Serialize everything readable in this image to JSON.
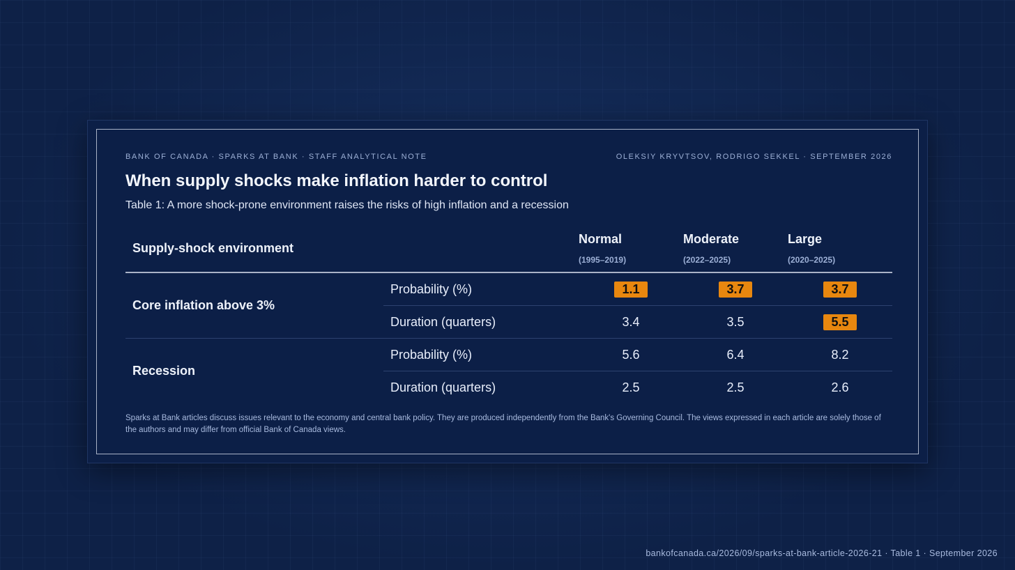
{
  "header": {
    "meta_left": "BANK OF CANADA · SPARKS AT BANK · STAFF ANALYTICAL NOTE",
    "meta_right": "OLEKSIY KRYVTSOV, RODRIGO SEKKEL · SEPTEMBER 2026",
    "title": "When supply shocks make inflation harder to control",
    "subtitle": "Table 1: A more shock-prone environment raises the risks of high inflation and a recession"
  },
  "chart_data": {
    "type": "table",
    "row_header": "Supply-shock environment",
    "columns": [
      {
        "name": "Normal",
        "period": "(1995–2019)"
      },
      {
        "name": "Moderate",
        "period": "(2022–2025)"
      },
      {
        "name": "Large",
        "period": "(2020–2025)"
      }
    ],
    "groups": [
      {
        "label": "Core inflation above 3%",
        "rows": [
          {
            "metric": "Probability (%)",
            "values": [
              "1.1",
              "3.7",
              "3.7"
            ],
            "highlighted": [
              true,
              true,
              true
            ]
          },
          {
            "metric": "Duration (quarters)",
            "values": [
              "3.4",
              "3.5",
              "5.5"
            ],
            "highlighted": [
              false,
              false,
              true
            ]
          }
        ]
      },
      {
        "label": "Recession",
        "rows": [
          {
            "metric": "Probability (%)",
            "values": [
              "5.6",
              "6.4",
              "8.2"
            ],
            "highlighted": [
              false,
              false,
              false
            ]
          },
          {
            "metric": "Duration (quarters)",
            "values": [
              "2.5",
              "2.5",
              "2.6"
            ],
            "highlighted": [
              false,
              false,
              false
            ]
          }
        ]
      }
    ],
    "highlight_color": "#e8870f"
  },
  "note": "Sparks at Bank articles discuss issues relevant to the economy and central bank policy. They are produced independently from the Bank's Governing Council. The views expressed in each article are solely those of the authors and may differ from official Bank of Canada views.",
  "footer": "bankofcanada.ca/2026/09/sparks-at-bank-article-2026-21 · Table 1 · September 2026"
}
